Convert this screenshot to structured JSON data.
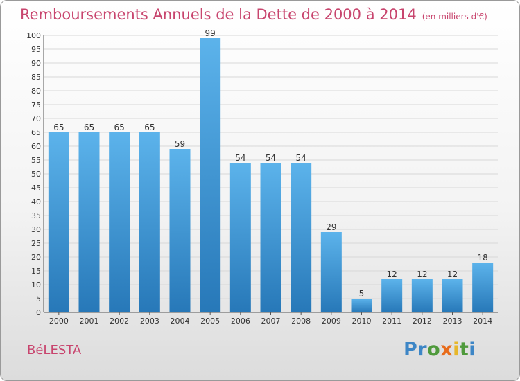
{
  "header": {
    "title": "Remboursements Annuels de la Dette de 2000 à 2014",
    "unit": "(en milliers d'€)"
  },
  "footer": {
    "commune": "BéLESTA",
    "logo_text": "Proxiti"
  },
  "colors": {
    "accent": "#c8456e",
    "bar_top": "#5cb3eb",
    "bar_bottom": "#2778b8",
    "logo": [
      "#3d86c6",
      "#3d86c6",
      "#4f9a3c",
      "#e86c1b",
      "#e7b72a",
      "#4f9a3c",
      "#3d86c6"
    ]
  },
  "chart_data": {
    "type": "bar",
    "title": "Remboursements Annuels de la Dette de 2000 à 2014",
    "subtitle": "(en milliers d'€)",
    "xlabel": "",
    "ylabel": "",
    "categories": [
      "2000",
      "2001",
      "2002",
      "2003",
      "2004",
      "2005",
      "2006",
      "2007",
      "2008",
      "2009",
      "2010",
      "2011",
      "2012",
      "2013",
      "2014"
    ],
    "values": [
      65,
      65,
      65,
      65,
      59,
      99,
      54,
      54,
      54,
      29,
      5,
      12,
      12,
      12,
      18
    ],
    "ylim": [
      0,
      100
    ],
    "yticks": [
      0,
      5,
      10,
      15,
      20,
      25,
      30,
      35,
      40,
      45,
      50,
      55,
      60,
      65,
      70,
      75,
      80,
      85,
      90,
      95,
      100
    ],
    "grid": true
  }
}
